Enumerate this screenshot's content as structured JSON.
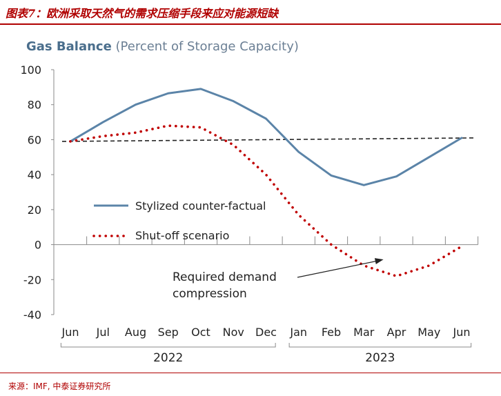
{
  "figure": {
    "title": "图表7：欧洲采取天然气的需求压缩手段来应对能源短缺",
    "source": "来源：IMF, 中泰证券研究所"
  },
  "chart_data": {
    "type": "line",
    "title": "Gas Balance",
    "subtitle": "(Percent of Storage Capacity)",
    "categories": [
      "Jun",
      "Jul",
      "Aug",
      "Sep",
      "Oct",
      "Nov",
      "Dec",
      "Jan",
      "Feb",
      "Mar",
      "Apr",
      "May",
      "Jun"
    ],
    "year_groups": [
      {
        "label": "2022",
        "from": "Jun",
        "to": "Dec"
      },
      {
        "label": "2023",
        "from": "Jan",
        "to": "Jun"
      }
    ],
    "ylim": [
      -40,
      100
    ],
    "yticks": [
      100,
      80,
      60,
      40,
      20,
      0,
      -20,
      -40
    ],
    "grid": false,
    "series": [
      {
        "name": "Stylized counter-factual",
        "style": "solid",
        "color": "#5b84a8",
        "values": [
          59,
          70,
          80,
          86.5,
          89,
          82,
          72,
          53,
          39.5,
          34,
          39,
          50,
          61
        ]
      },
      {
        "name": "Shut-off scenario",
        "style": "dotted",
        "color": "#c00000",
        "values": [
          59,
          62,
          64,
          68,
          67,
          57,
          40,
          17,
          0,
          -12,
          -18,
          -12,
          -1
        ]
      }
    ],
    "reference_line": {
      "style": "dashed",
      "color": "#222222",
      "values": [
        59,
        61
      ]
    },
    "annotation": {
      "lines": [
        "Required demand",
        "compression"
      ],
      "points_to": {
        "category_index": 9.6,
        "value": -8.5
      }
    },
    "legend_position": "center-left"
  }
}
